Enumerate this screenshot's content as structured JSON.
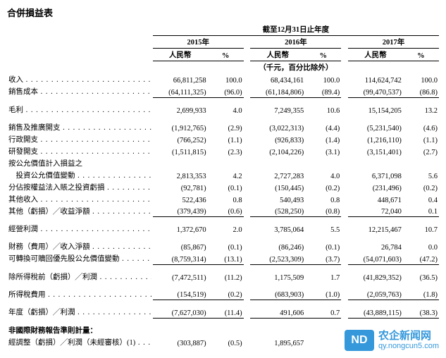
{
  "title": "合併損益表",
  "header": {
    "super": "截至12月31日止年度",
    "years": [
      "2015年",
      "2016年",
      "2017年"
    ],
    "ccy": "人民幣",
    "pct": "%",
    "unit_note": "（千元，百分比除外）"
  },
  "rows": [
    {
      "label": "收入",
      "v": [
        "66,811,258",
        "100.0",
        "68,434,161",
        "100.0",
        "114,624,742",
        "100.0"
      ],
      "ul": [
        0,
        0,
        0,
        0,
        0,
        0
      ]
    },
    {
      "label": "銷售成本",
      "v": [
        "(64,111,325)",
        "(96.0)",
        "(61,184,806)",
        "(89.4)",
        "(99,470,537)",
        "(86.8)"
      ],
      "ul": [
        1,
        1,
        1,
        1,
        1,
        1
      ]
    },
    {
      "spacer": true
    },
    {
      "label": "毛利",
      "v": [
        "2,699,933",
        "4.0",
        "7,249,355",
        "10.6",
        "15,154,205",
        "13.2"
      ],
      "ul": [
        0,
        0,
        0,
        0,
        0,
        0
      ]
    },
    {
      "spacer": true
    },
    {
      "label": "銷售及推廣開支",
      "v": [
        "(1,912,765)",
        "(2.9)",
        "(3,022,313)",
        "(4.4)",
        "(5,231,540)",
        "(4.6)"
      ],
      "ul": [
        0,
        0,
        0,
        0,
        0,
        0
      ]
    },
    {
      "label": "行政開支",
      "v": [
        "(766,252)",
        "(1.1)",
        "(926,833)",
        "(1.4)",
        "(1,216,110)",
        "(1.1)"
      ],
      "ul": [
        0,
        0,
        0,
        0,
        0,
        0
      ]
    },
    {
      "label": "研發開支",
      "v": [
        "(1,511,815)",
        "(2.3)",
        "(2,104,226)",
        "(3.1)",
        "(3,151,401)",
        "(2.7)"
      ],
      "ul": [
        0,
        0,
        0,
        0,
        0,
        0
      ]
    },
    {
      "label": "按公允價值計入損益之",
      "plain": true
    },
    {
      "label": "　投資公允價值變動",
      "v": [
        "2,813,353",
        "4.2",
        "2,727,283",
        "4.0",
        "6,371,098",
        "5.6"
      ],
      "ul": [
        0,
        0,
        0,
        0,
        0,
        0
      ]
    },
    {
      "label": "分佔按權益法入賬之投資虧損",
      "v": [
        "(92,781)",
        "(0.1)",
        "(150,445)",
        "(0.2)",
        "(231,496)",
        "(0.2)"
      ],
      "ul": [
        0,
        0,
        0,
        0,
        0,
        0
      ]
    },
    {
      "label": "其他收入",
      "v": [
        "522,436",
        "0.8",
        "540,493",
        "0.8",
        "448,671",
        "0.4"
      ],
      "ul": [
        0,
        0,
        0,
        0,
        0,
        0
      ]
    },
    {
      "label": "其他（虧損）╱收益淨額",
      "v": [
        "(379,439)",
        "(0.6)",
        "(528,250)",
        "(0.8)",
        "72,040",
        "0.1"
      ],
      "ul": [
        1,
        1,
        1,
        1,
        1,
        1
      ]
    },
    {
      "spacer": true
    },
    {
      "label": "經營利潤",
      "v": [
        "1,372,670",
        "2.0",
        "3,785,064",
        "5.5",
        "12,215,467",
        "10.7"
      ],
      "ul": [
        0,
        0,
        0,
        0,
        0,
        0
      ]
    },
    {
      "spacer": true
    },
    {
      "label": "財務（費用）╱收入淨額",
      "v": [
        "(85,867)",
        "(0.1)",
        "(86,246)",
        "(0.1)",
        "26,784",
        "0.0"
      ],
      "ul": [
        0,
        0,
        0,
        0,
        0,
        0
      ]
    },
    {
      "label": "可轉換可贖回優先股公允價值變動",
      "v": [
        "(8,759,314)",
        "(13.1)",
        "(2,523,309)",
        "(3.7)",
        "(54,071,603)",
        "(47.2)"
      ],
      "ul": [
        1,
        1,
        1,
        1,
        1,
        1
      ]
    },
    {
      "spacer": true
    },
    {
      "label": "除所得稅前（虧損）╱利潤",
      "v": [
        "(7,472,511)",
        "(11.2)",
        "1,175,509",
        "1.7",
        "(41,829,352)",
        "(36.5)"
      ],
      "ul": [
        0,
        0,
        0,
        0,
        0,
        0
      ]
    },
    {
      "spacer": true
    },
    {
      "label": "所得稅費用",
      "v": [
        "(154,519)",
        "(0.2)",
        "(683,903)",
        "(1.0)",
        "(2,059,763)",
        "(1.8)"
      ],
      "ul": [
        1,
        1,
        1,
        1,
        1,
        1
      ]
    },
    {
      "spacer": true
    },
    {
      "label": "年度（虧損）╱利潤",
      "v": [
        "(7,627,030)",
        "(11.4)",
        "491,606",
        "0.7",
        "(43,889,115)",
        "(38.3)"
      ],
      "ul": [
        1,
        1,
        1,
        1,
        1,
        1
      ]
    },
    {
      "spacer": true
    },
    {
      "label": "非國際財務報告準則計量：",
      "plain": true,
      "bold": true
    },
    {
      "label": "經調整（虧損）╱利潤（未經審核）(1)",
      "v": [
        "(303,887)",
        "(0.5)",
        "1,895,657",
        "",
        "",
        ""
      ],
      "ul": [
        0,
        0,
        0,
        0,
        0,
        0
      ]
    }
  ],
  "watermark": {
    "logo_text": "ND",
    "cn": "农企新闻网",
    "url": "qy.nongcun5.com"
  }
}
